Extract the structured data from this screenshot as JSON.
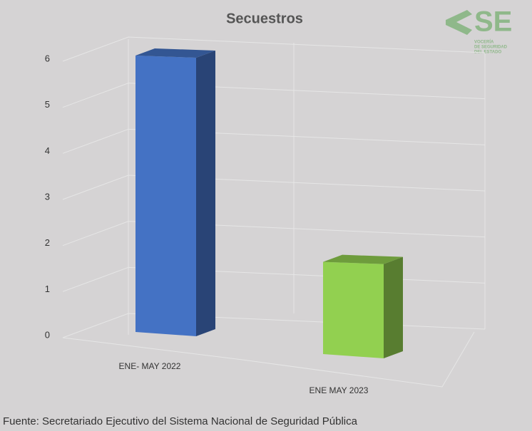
{
  "chart_data": {
    "type": "bar3d",
    "title": "Secuestros",
    "categories": [
      "ENE- MAY 2022",
      "ENE MAY 2023"
    ],
    "series": [
      {
        "name": null,
        "colors": [
          "#4472c4",
          "#92d050"
        ],
        "values": [
          6,
          2
        ]
      }
    ],
    "ylim": [
      0,
      6
    ],
    "yticks": [
      0,
      1,
      2,
      3,
      4,
      5,
      6
    ],
    "grid": true
  },
  "logo": {
    "mark": "SE",
    "text": [
      "VOCERÍA",
      "DE SEGURIDAD",
      "DEL ESTADO"
    ]
  },
  "source": "Fuente: Secretariado Ejecutivo del Sistema Nacional de Seguridad Pública"
}
